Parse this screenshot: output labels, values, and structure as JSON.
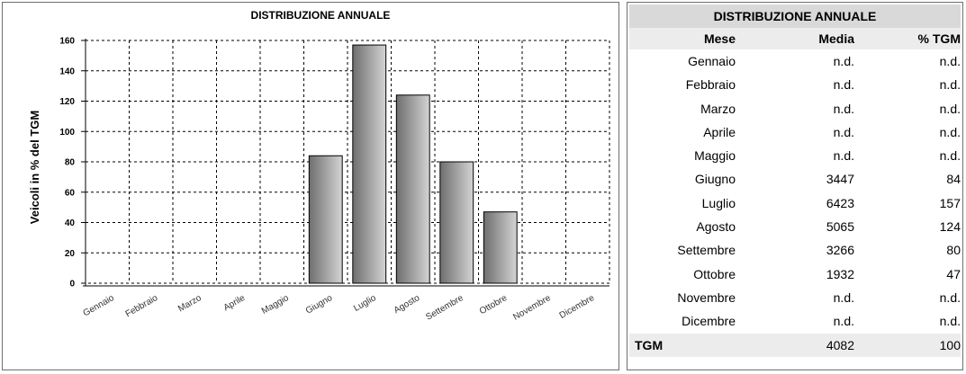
{
  "chart_data": {
    "type": "bar",
    "title": "DISTRIBUZIONE ANNUALE",
    "ylabel": "Veicoli in % del TGM",
    "xlabel": "",
    "categories": [
      "Gennaio",
      "Febbraio",
      "Marzo",
      "Aprile",
      "Maggio",
      "Giugno",
      "Luglio",
      "Agosto",
      "Settembre",
      "Ottobre",
      "Novembre",
      "Dicembre"
    ],
    "values": [
      0,
      0,
      0,
      0,
      0,
      84,
      157,
      124,
      80,
      47,
      0,
      0
    ],
    "ylim": [
      0,
      160
    ],
    "yticks": [
      0,
      20,
      40,
      60,
      80,
      100,
      120,
      140,
      160
    ],
    "grid": true,
    "bar_color_dark": "#6e6e6e",
    "bar_color_light": "#d4d4d4"
  },
  "table": {
    "title": "DISTRIBUZIONE ANNUALE",
    "headers": {
      "mese": "Mese",
      "media": "Media",
      "tgm": "% TGM"
    },
    "rows": [
      {
        "mese": "Gennaio",
        "media": "n.d.",
        "tgm": "n.d."
      },
      {
        "mese": "Febbraio",
        "media": "n.d.",
        "tgm": "n.d."
      },
      {
        "mese": "Marzo",
        "media": "n.d.",
        "tgm": "n.d."
      },
      {
        "mese": "Aprile",
        "media": "n.d.",
        "tgm": "n.d."
      },
      {
        "mese": "Maggio",
        "media": "n.d.",
        "tgm": "n.d."
      },
      {
        "mese": "Giugno",
        "media": "3447",
        "tgm": "84"
      },
      {
        "mese": "Luglio",
        "media": "6423",
        "tgm": "157"
      },
      {
        "mese": "Agosto",
        "media": "5065",
        "tgm": "124"
      },
      {
        "mese": "Settembre",
        "media": "3266",
        "tgm": "80"
      },
      {
        "mese": "Ottobre",
        "media": "1932",
        "tgm": "47"
      },
      {
        "mese": "Novembre",
        "media": "n.d.",
        "tgm": "n.d."
      },
      {
        "mese": "Dicembre",
        "media": "n.d.",
        "tgm": "n.d."
      }
    ],
    "total": {
      "label": "TGM",
      "media": "4082",
      "tgm": "100"
    }
  }
}
